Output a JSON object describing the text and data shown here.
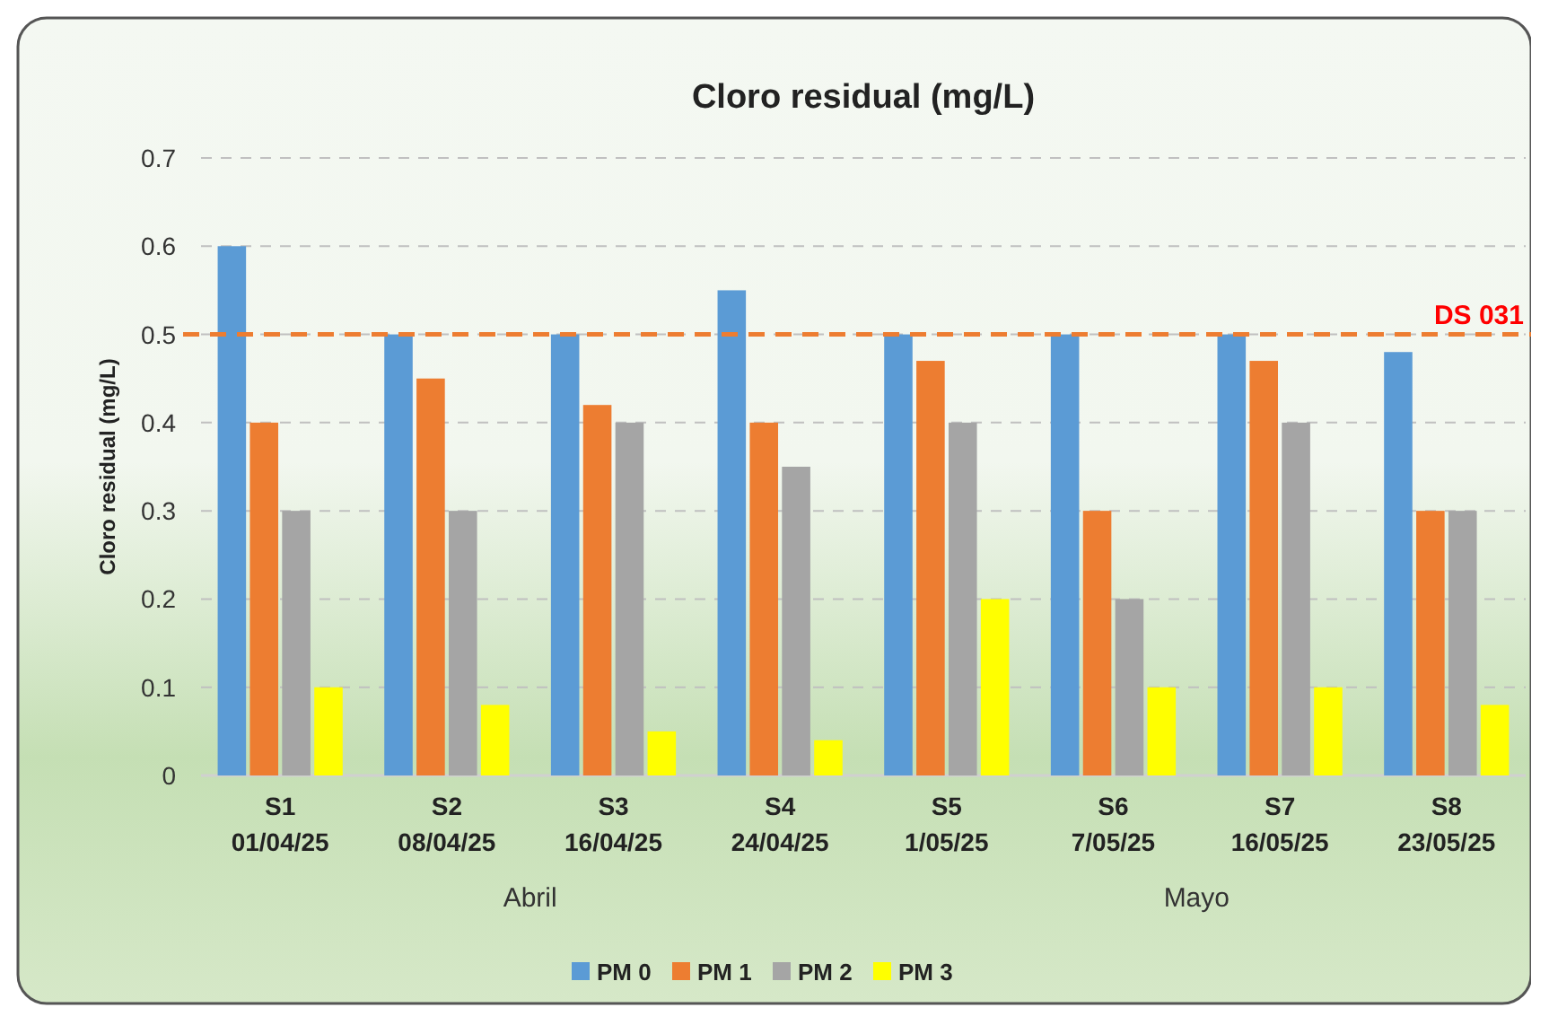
{
  "chart_data": {
    "type": "bar",
    "title": "Cloro residual (mg/L)",
    "ylabel": "Cloro residual (mg/L)",
    "categories": [
      "S1\n01/04/25",
      "S2\n08/04/25",
      "S3\n16/04/25",
      "S4\n24/04/25",
      "S5\n1/05/25",
      "S6\n7/05/25",
      "S7\n16/05/25",
      "S8\n23/05/25"
    ],
    "series": [
      {
        "name": "PM 0",
        "color": "#5b9bd5",
        "values": [
          0.6,
          0.5,
          0.5,
          0.55,
          0.5,
          0.5,
          0.5,
          0.48
        ]
      },
      {
        "name": "PM 1",
        "color": "#ed7d31",
        "values": [
          0.4,
          0.45,
          0.42,
          0.4,
          0.47,
          0.3,
          0.47,
          0.3
        ]
      },
      {
        "name": "PM 2",
        "color": "#a5a5a5",
        "values": [
          0.3,
          0.3,
          0.4,
          0.35,
          0.4,
          0.2,
          0.4,
          0.3
        ]
      },
      {
        "name": "PM 3",
        "color": "#ffff00",
        "values": [
          0.1,
          0.08,
          0.05,
          0.04,
          0.2,
          0.1,
          0.1,
          0.08
        ]
      }
    ],
    "ylim": [
      0,
      0.7
    ],
    "yticks": [
      0,
      0.1,
      0.2,
      0.3,
      0.4,
      0.5,
      0.6,
      0.7
    ],
    "ref_lines": [
      {
        "axis": "y",
        "value": 0.5,
        "label": "DS 031",
        "color": "#ed7d31",
        "line_style": "dashed"
      }
    ],
    "annotations": [
      "Abril",
      "Mayo"
    ],
    "grid": "y",
    "legend": "bottom"
  }
}
